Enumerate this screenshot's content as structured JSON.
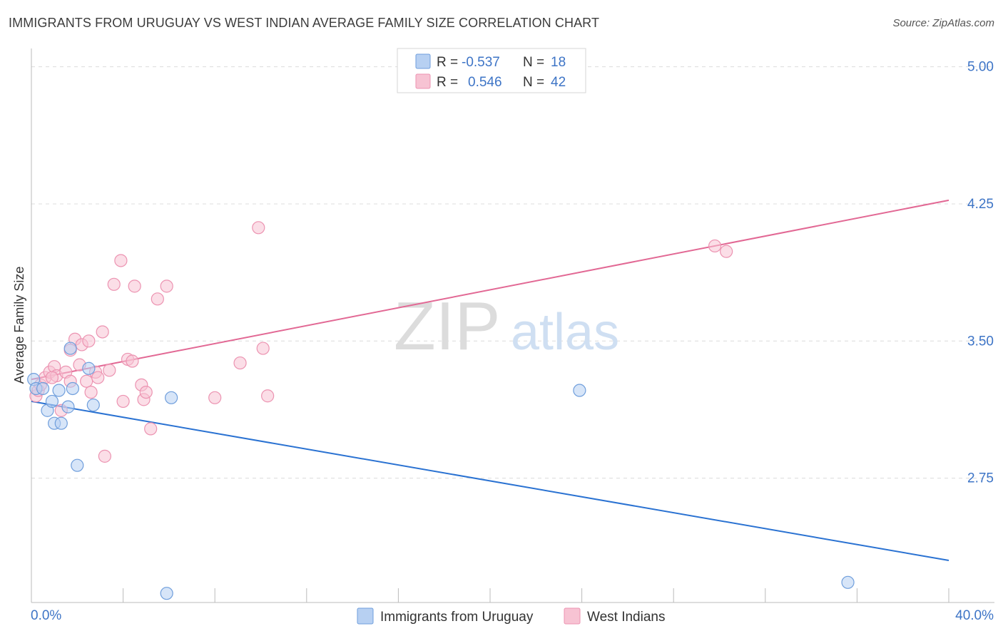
{
  "header": {
    "title": "IMMIGRANTS FROM URUGUAY VS WEST INDIAN AVERAGE FAMILY SIZE CORRELATION CHART",
    "source": "Source: ZipAtlas.com"
  },
  "watermark": {
    "zip": "ZIP",
    "atlas": "atlas"
  },
  "colors": {
    "uruguay_fill": "#b7d0f2",
    "uruguay_stroke": "#6f9edc",
    "uruguay_line": "#2a72d2",
    "westindian_fill": "#f7c3d3",
    "westindian_stroke": "#ec93b1",
    "westindian_line": "#e26894",
    "tick_text": "#3d74c6"
  },
  "stats_legend": {
    "rows": [
      {
        "r_label": "R =",
        "r_value": "-0.537",
        "n_label": "N =",
        "n_value": "18"
      },
      {
        "r_label": "R =",
        "r_value": "0.546",
        "n_label": "N =",
        "n_value": "42"
      }
    ]
  },
  "chart_data": {
    "type": "scatter",
    "title": "IMMIGRANTS FROM URUGUAY VS WEST INDIAN AVERAGE FAMILY SIZE CORRELATION CHART",
    "xlabel": "",
    "ylabel": "Average Family Size",
    "xlim": [
      0,
      40
    ],
    "ylim": [
      2.07,
      5.1
    ],
    "x_tick_labels": [
      "0.0%",
      "40.0%"
    ],
    "y_ticks": [
      2.75,
      3.5,
      4.25,
      5.0
    ],
    "y_tick_labels": [
      "2.75",
      "3.50",
      "4.25",
      "5.00"
    ],
    "grid": true,
    "legend_position": "bottom-center",
    "series": [
      {
        "name": "Immigrants from Uruguay",
        "r": -0.537,
        "n": 18,
        "trend": {
          "x": [
            0,
            40
          ],
          "y": [
            3.17,
            2.3
          ]
        },
        "points": [
          {
            "x": 0.1,
            "y": 3.29
          },
          {
            "x": 0.2,
            "y": 3.24
          },
          {
            "x": 0.5,
            "y": 3.24
          },
          {
            "x": 0.7,
            "y": 3.12
          },
          {
            "x": 0.9,
            "y": 3.17
          },
          {
            "x": 1.0,
            "y": 3.05
          },
          {
            "x": 1.3,
            "y": 3.05
          },
          {
            "x": 1.2,
            "y": 3.23
          },
          {
            "x": 1.6,
            "y": 3.14
          },
          {
            "x": 1.7,
            "y": 3.46
          },
          {
            "x": 1.8,
            "y": 3.24
          },
          {
            "x": 2.0,
            "y": 2.82
          },
          {
            "x": 2.5,
            "y": 3.35
          },
          {
            "x": 2.7,
            "y": 3.15
          },
          {
            "x": 5.9,
            "y": 2.12
          },
          {
            "x": 6.1,
            "y": 3.19
          },
          {
            "x": 23.9,
            "y": 3.23
          },
          {
            "x": 35.6,
            "y": 2.18
          }
        ]
      },
      {
        "name": "West Indians",
        "r": 0.546,
        "n": 42,
        "trend": {
          "x": [
            0,
            40
          ],
          "y": [
            3.29,
            4.27
          ]
        },
        "points": [
          {
            "x": 0.2,
            "y": 3.2
          },
          {
            "x": 0.3,
            "y": 3.23
          },
          {
            "x": 0.4,
            "y": 3.26
          },
          {
            "x": 0.6,
            "y": 3.3
          },
          {
            "x": 0.8,
            "y": 3.33
          },
          {
            "x": 1.0,
            "y": 3.36
          },
          {
            "x": 1.1,
            "y": 3.31
          },
          {
            "x": 1.3,
            "y": 3.12
          },
          {
            "x": 1.5,
            "y": 3.33
          },
          {
            "x": 1.7,
            "y": 3.28
          },
          {
            "x": 1.7,
            "y": 3.45
          },
          {
            "x": 1.9,
            "y": 3.51
          },
          {
            "x": 2.1,
            "y": 3.37
          },
          {
            "x": 2.2,
            "y": 3.48
          },
          {
            "x": 2.4,
            "y": 3.28
          },
          {
            "x": 2.5,
            "y": 3.5
          },
          {
            "x": 2.6,
            "y": 3.22
          },
          {
            "x": 2.8,
            "y": 3.33
          },
          {
            "x": 2.9,
            "y": 3.3
          },
          {
            "x": 3.1,
            "y": 3.55
          },
          {
            "x": 3.2,
            "y": 2.87
          },
          {
            "x": 3.4,
            "y": 3.34
          },
          {
            "x": 3.6,
            "y": 3.81
          },
          {
            "x": 3.9,
            "y": 3.94
          },
          {
            "x": 4.0,
            "y": 3.17
          },
          {
            "x": 4.2,
            "y": 3.4
          },
          {
            "x": 4.4,
            "y": 3.39
          },
          {
            "x": 4.5,
            "y": 3.8
          },
          {
            "x": 4.8,
            "y": 3.26
          },
          {
            "x": 4.9,
            "y": 3.18
          },
          {
            "x": 5.0,
            "y": 3.22
          },
          {
            "x": 5.2,
            "y": 3.02
          },
          {
            "x": 5.5,
            "y": 3.73
          },
          {
            "x": 5.9,
            "y": 3.8
          },
          {
            "x": 8.0,
            "y": 3.19
          },
          {
            "x": 9.1,
            "y": 3.38
          },
          {
            "x": 9.9,
            "y": 4.12
          },
          {
            "x": 10.1,
            "y": 3.46
          },
          {
            "x": 10.3,
            "y": 3.2
          },
          {
            "x": 29.8,
            "y": 4.02
          },
          {
            "x": 30.3,
            "y": 3.99
          },
          {
            "x": 0.9,
            "y": 3.3
          }
        ]
      }
    ]
  }
}
